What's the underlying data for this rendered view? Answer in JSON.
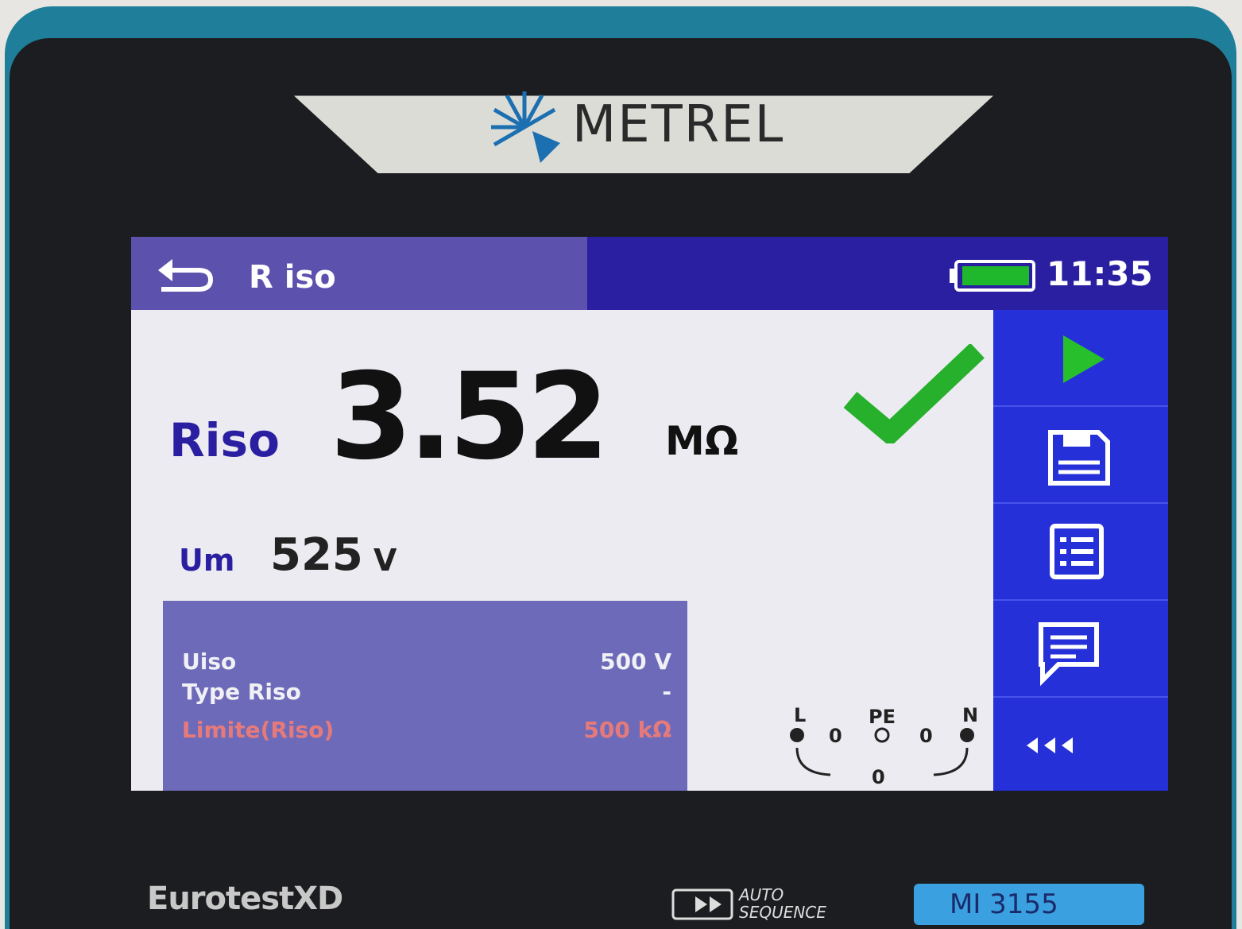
{
  "device": {
    "brand": "METREL",
    "model_name": "EurotestXD",
    "auto_sequence": "AUTO SEQUENCE",
    "model_code": "MI 3155"
  },
  "header": {
    "title": "R iso",
    "time": "11:35"
  },
  "result": {
    "label": "Riso",
    "value": "3.52",
    "unit": "MΩ"
  },
  "sub_result": {
    "label": "Um",
    "value": "525",
    "unit": "V"
  },
  "parameters": [
    {
      "name": "Uiso",
      "value": "500 V"
    },
    {
      "name": "Type Riso",
      "value": "-"
    },
    {
      "name": "Limite(Riso)",
      "value": "500 kΩ"
    }
  ],
  "terminals": {
    "l": "L",
    "pe": "PE",
    "n": "N",
    "l_pe": "0",
    "pe_n": "0",
    "l_n": "0"
  }
}
